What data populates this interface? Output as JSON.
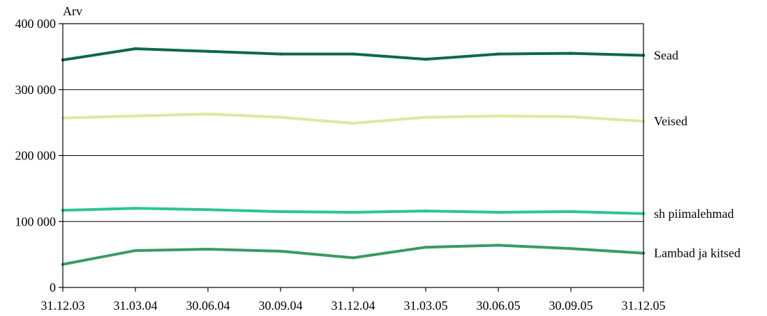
{
  "chart_data": {
    "type": "line",
    "ylabel": "Arv",
    "xlabel": "",
    "title": "",
    "ylim": [
      0,
      400000
    ],
    "yticks": [
      0,
      100000,
      200000,
      300000,
      400000
    ],
    "ytick_labels": [
      "0",
      "100 000",
      "200 000",
      "300 000",
      "400 000"
    ],
    "grid": "horizontal",
    "legend": "right-end-labels",
    "categories": [
      "31.12.03",
      "31.03.04",
      "30.06.04",
      "30.09.04",
      "31.12.04",
      "31.03.05",
      "30.06.05",
      "30.09.05",
      "31.12.05"
    ],
    "series": [
      {
        "name": "Sead",
        "color": "#0b6a44",
        "values": [
          345000,
          362000,
          358000,
          354000,
          354000,
          346000,
          354000,
          355000,
          352000
        ]
      },
      {
        "name": "Veised",
        "color": "#dfe89e",
        "values": [
          257000,
          260000,
          263000,
          258000,
          249000,
          258000,
          260000,
          259000,
          252000
        ]
      },
      {
        "name": "sh piimalehmad",
        "color": "#2cc58e",
        "values": [
          117000,
          120000,
          118000,
          115000,
          114000,
          116000,
          114000,
          115000,
          112000
        ]
      },
      {
        "name": "Lambad ja kitsed",
        "color": "#3a9a66",
        "values": [
          35000,
          56000,
          58000,
          55000,
          45000,
          61000,
          64000,
          59000,
          52000
        ]
      }
    ]
  }
}
